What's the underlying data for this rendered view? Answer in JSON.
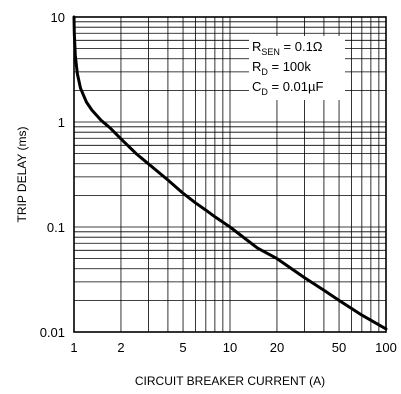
{
  "chart_data": {
    "type": "line",
    "title": "",
    "xlabel": "CIRCUIT BREAKER CURRENT (A)",
    "ylabel": "TRIP DELAY (ms)",
    "xscale": "log",
    "yscale": "log",
    "xlim": [
      1,
      100
    ],
    "ylim": [
      0.01,
      10
    ],
    "grid": true,
    "x_tick_labels": [
      "1",
      "2",
      "5",
      "10",
      "20",
      "50",
      "100"
    ],
    "x_tick_values": [
      1,
      2,
      5,
      10,
      20,
      50,
      100
    ],
    "y_tick_labels": [
      "0.01",
      "0.1",
      "1",
      "10"
    ],
    "y_tick_values": [
      0.01,
      0.1,
      1,
      10
    ],
    "annotation": {
      "lines": [
        {
          "main": "R",
          "sub": "SEN",
          "rest": " = 0.1Ω"
        },
        {
          "main": "R",
          "sub": "D",
          "rest": " = 100k"
        },
        {
          "main": "C",
          "sub": "D",
          "rest": " = 0.01µF"
        }
      ],
      "placement": "top-right"
    },
    "series": [
      {
        "x": [
          1.0,
          1.005,
          1.02,
          1.05,
          1.1,
          1.2,
          1.3,
          1.5,
          1.7,
          2,
          2.5,
          3,
          4,
          5,
          6,
          7,
          8,
          10,
          15,
          20,
          30,
          40,
          50,
          70,
          100
        ],
        "y": [
          10,
          7,
          4.3,
          2.9,
          2.1,
          1.55,
          1.3,
          1.03,
          0.88,
          0.69,
          0.5,
          0.4,
          0.28,
          0.21,
          0.17,
          0.145,
          0.125,
          0.1,
          0.063,
          0.05,
          0.033,
          0.025,
          0.02,
          0.0145,
          0.0107
        ]
      }
    ]
  }
}
